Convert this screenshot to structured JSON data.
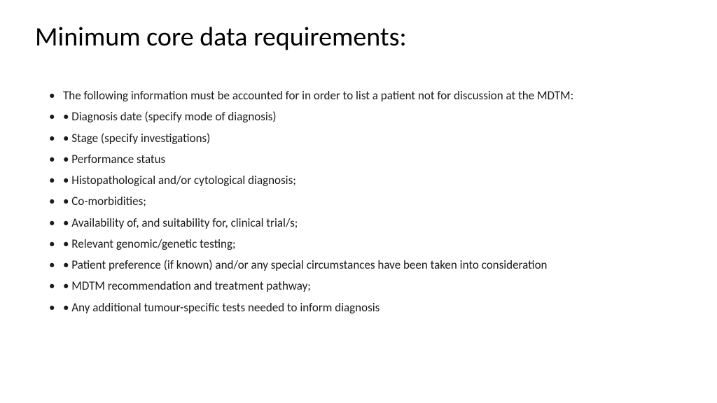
{
  "slide": {
    "title": "Minimum core data requirements:",
    "bullets": [
      "The following information must be accounted for in order to list a patient not for discussion at the MDTM:",
      "• Diagnosis date (specify mode of diagnosis)",
      "• Stage (specify investigations)",
      "• Performance status",
      "• Histopathological and/or cytological diagnosis;",
      "• Co-morbidities;",
      "• Availability of, and suitability for, clinical trial/s;",
      "• Relevant genomic/genetic testing;",
      "• Patient preference (if known) and/or any special circumstances have been taken into consideration",
      "• MDTM recommendation and treatment pathway;",
      "• Any additional tumour-specific tests needed to inform diagnosis"
    ]
  },
  "styling": {
    "background_color": "#ffffff",
    "text_color": "#000000",
    "title_fontsize": 38,
    "body_fontsize": 17,
    "font_family": "Calibri"
  }
}
